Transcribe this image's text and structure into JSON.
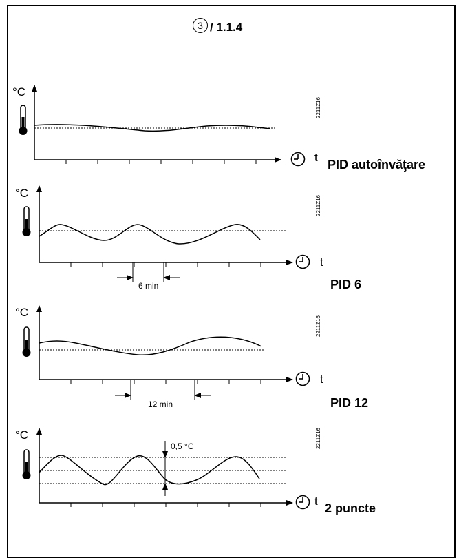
{
  "header": {
    "step_number": "3",
    "reference": "/ 1.1.4"
  },
  "image_code": "2211Z16",
  "unit_label": "°C",
  "time_label": "t",
  "panels": [
    {
      "label": "PID autoînvăţare"
    },
    {
      "label": "PID 6",
      "interval": "6 min"
    },
    {
      "label": "PID 12",
      "interval": "12 min"
    },
    {
      "label": "2 puncte",
      "hysteresis": "0,5 °C"
    }
  ]
}
